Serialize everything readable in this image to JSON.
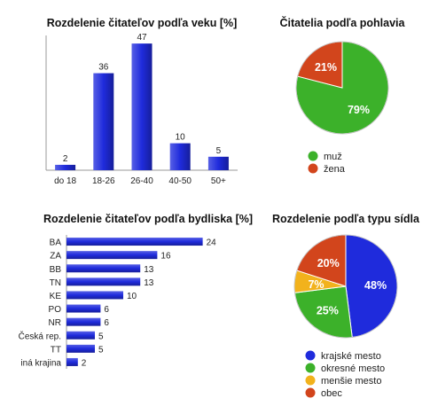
{
  "chart_data": [
    {
      "type": "bar",
      "title": "Rozdelenie čitateľov podľa veku [%]",
      "categories": [
        "do 18",
        "18-26",
        "26-40",
        "40-50",
        "50+"
      ],
      "values": [
        2,
        36,
        47,
        10,
        5
      ],
      "ylim": [
        0,
        50
      ],
      "bar_color": "#1f2bdc",
      "grid": false,
      "legend": "none"
    },
    {
      "type": "pie",
      "title": "Čitatelia podľa pohlavia",
      "labels": [
        "muž",
        "žena"
      ],
      "values": [
        79,
        21
      ],
      "value_labels": [
        "79%",
        "21%"
      ],
      "colors": [
        "#3cb12a",
        "#d2451c"
      ],
      "legend": "bottom"
    },
    {
      "type": "bar",
      "orientation": "horizontal",
      "title": "Rozdelenie čitateľov podľa bydliska [%]",
      "categories": [
        "BA",
        "ZA",
        "BB",
        "TN",
        "KE",
        "PO",
        "NR",
        "Česká rep.",
        "TT",
        "iná krajina"
      ],
      "values": [
        24,
        16,
        13,
        13,
        10,
        6,
        6,
        5,
        5,
        2
      ],
      "xlim": [
        0,
        25
      ],
      "bar_color": "#1f2bdc",
      "grid": false,
      "legend": "none"
    },
    {
      "type": "pie",
      "title": "Rozdelenie podľa typu sídla",
      "labels": [
        "krajské mesto",
        "okresné mesto",
        "menšie mesto",
        "obec"
      ],
      "values": [
        48,
        25,
        7,
        20
      ],
      "value_labels": [
        "48%",
        "25%",
        "7%",
        "20%"
      ],
      "colors": [
        "#1f2bdc",
        "#3cb12a",
        "#f2b21c",
        "#d2451c"
      ],
      "legend": "bottom"
    }
  ]
}
